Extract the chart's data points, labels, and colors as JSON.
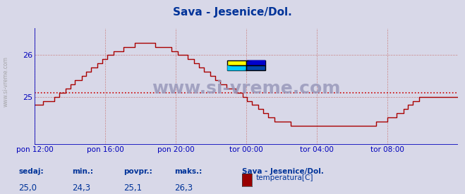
{
  "title": "Sava - Jesenice/Dol.",
  "title_color": "#003399",
  "bg_color": "#d8d8e8",
  "plot_bg_color": "#d8d8e8",
  "line_color": "#aa0000",
  "avg_line_color": "#cc0000",
  "avg_value": 25.1,
  "y_min": 23.85,
  "y_max": 26.65,
  "y_ticks": [
    25,
    26
  ],
  "x_tick_labels": [
    "pon 12:00",
    "pon 16:00",
    "pon 20:00",
    "tor 00:00",
    "tor 04:00",
    "tor 08:00"
  ],
  "grid_color": "#bbbbcc",
  "axis_color": "#0000bb",
  "footer_labels": [
    "sedaj:",
    "min.:",
    "povpr.:",
    "maks.:"
  ],
  "footer_values": [
    "25,0",
    "24,3",
    "25,1",
    "26,3"
  ],
  "footer_color": "#003399",
  "legend_label": "temperatura[C]",
  "legend_title": "Sava - Jesenice/Dol.",
  "legend_color": "#990000",
  "watermark": "www.si-vreme.com",
  "watermark_color": "#9999bb",
  "x_tick_positions": [
    0.0,
    0.1667,
    0.3333,
    0.5,
    0.6667,
    0.8333
  ],
  "temps": [
    24.8,
    24.8,
    24.9,
    24.9,
    25.0,
    25.1,
    25.2,
    25.3,
    25.4,
    25.5,
    25.6,
    25.7,
    25.8,
    25.9,
    26.0,
    26.1,
    26.1,
    26.2,
    26.2,
    26.3,
    26.3,
    26.3,
    26.3,
    26.2,
    26.2,
    26.2,
    26.1,
    26.0,
    26.0,
    25.9,
    25.8,
    25.7,
    25.6,
    25.5,
    25.4,
    25.3,
    25.2,
    25.2,
    25.1,
    25.0,
    24.9,
    24.8,
    24.7,
    24.6,
    24.5,
    24.4,
    24.4,
    24.4,
    24.3,
    24.3,
    24.3,
    24.3,
    24.3,
    24.3,
    24.3,
    24.3,
    24.3,
    24.3,
    24.3,
    24.3,
    24.3,
    24.3,
    24.3,
    24.3,
    24.4,
    24.4,
    24.5,
    24.5,
    24.6,
    24.7,
    24.8,
    24.9,
    25.0,
    25.0,
    25.0,
    25.0,
    25.0,
    25.0,
    25.0,
    25.0
  ]
}
